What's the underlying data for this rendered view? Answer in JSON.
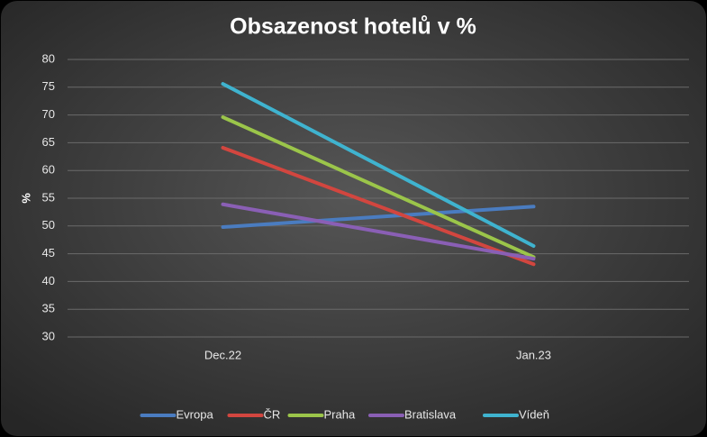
{
  "chart_data": {
    "type": "line",
    "title": "Obsazenost hotelů v %",
    "y_label": "%",
    "categories": [
      "Dec.22",
      "Jan.23"
    ],
    "series": [
      {
        "name": "Evropa",
        "color": "#4a7cc0",
        "values": [
          49.8,
          53.5
        ]
      },
      {
        "name": "ČR",
        "color": "#d2463f",
        "values": [
          64.1,
          43.1
        ]
      },
      {
        "name": "Praha",
        "color": "#9bc54a",
        "values": [
          69.6,
          44.4
        ]
      },
      {
        "name": "Bratislava",
        "color": "#8a5fb5",
        "values": [
          53.9,
          44.1
        ]
      },
      {
        "name": "Vídeň",
        "color": "#3fb3cf",
        "values": [
          75.6,
          46.4
        ]
      }
    ],
    "ylim": [
      30,
      80
    ],
    "yticks": [
      30,
      35,
      40,
      45,
      50,
      55,
      60,
      65,
      70,
      75,
      80
    ],
    "grid": true,
    "legend": "bottom"
  }
}
